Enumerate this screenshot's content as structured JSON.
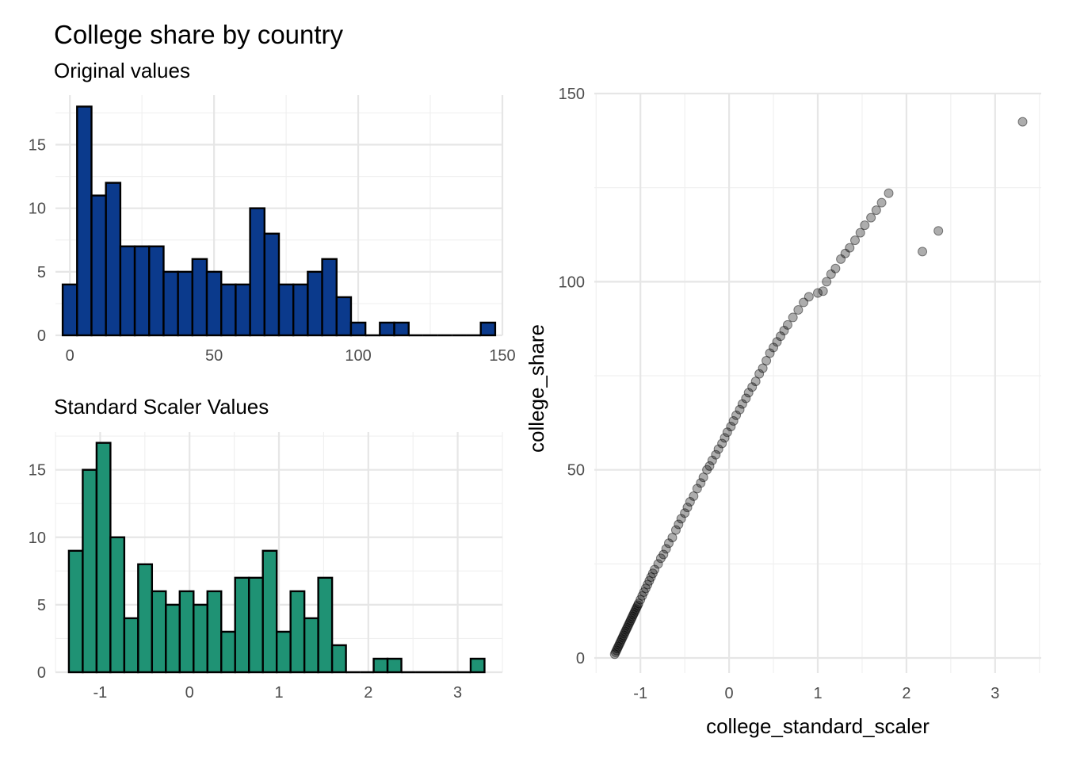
{
  "title": "College share by country",
  "chart_data": [
    {
      "type": "bar",
      "subtitle": "Original values",
      "xlabel": "",
      "ylabel": "",
      "xlim": [
        -5,
        150
      ],
      "ylim": [
        0,
        18.9
      ],
      "x_ticks": [
        0,
        50,
        100,
        150
      ],
      "y_ticks": [
        0,
        5,
        10,
        15
      ],
      "bin_start": -2.5,
      "bin_width": 5,
      "values": [
        4,
        18,
        11,
        12,
        7,
        7,
        7,
        5,
        5,
        6,
        5,
        4,
        4,
        10,
        8,
        4,
        4,
        5,
        6,
        3,
        1,
        0,
        1,
        1,
        0,
        0,
        0,
        0,
        0,
        1
      ],
      "fill": "#0b3a8c",
      "outline": "#000000",
      "grid": true
    },
    {
      "type": "bar",
      "subtitle": "Standard Scaler Values",
      "xlabel": "",
      "ylabel": "",
      "xlim": [
        -1.5,
        3.5
      ],
      "ylim": [
        0,
        17.8
      ],
      "x_ticks": [
        -1,
        0,
        1,
        2,
        3
      ],
      "y_ticks": [
        0,
        5,
        10,
        15
      ],
      "bin_start": -1.35,
      "bin_width": 0.155,
      "values": [
        9,
        15,
        17,
        10,
        4,
        8,
        6,
        5,
        6,
        5,
        6,
        3,
        7,
        7,
        9,
        3,
        6,
        4,
        7,
        2,
        0,
        0,
        1,
        1,
        0,
        0,
        0,
        0,
        0,
        1
      ],
      "fill": "#1f9274",
      "outline": "#000000",
      "grid": true
    },
    {
      "type": "scatter",
      "xlabel": "college_standard_scaler",
      "ylabel": "college_share",
      "xlim": [
        -1.52,
        3.52
      ],
      "ylim": [
        -4,
        150
      ],
      "x_ticks": [
        -1,
        0,
        1,
        2,
        3
      ],
      "y_ticks": [
        0,
        50,
        100,
        150
      ],
      "point_color": "#000000",
      "point_alpha": 0.32,
      "grid": true,
      "points": [
        [
          -1.29,
          1.0
        ],
        [
          -1.28,
          1.5
        ],
        [
          -1.27,
          2.0
        ],
        [
          -1.26,
          2.5
        ],
        [
          -1.25,
          3.0
        ],
        [
          -1.24,
          3.5
        ],
        [
          -1.23,
          4.0
        ],
        [
          -1.22,
          4.5
        ],
        [
          -1.21,
          5.0
        ],
        [
          -1.2,
          5.5
        ],
        [
          -1.19,
          6.0
        ],
        [
          -1.18,
          6.5
        ],
        [
          -1.17,
          7.0
        ],
        [
          -1.16,
          7.5
        ],
        [
          -1.15,
          8.0
        ],
        [
          -1.14,
          8.5
        ],
        [
          -1.13,
          9.0
        ],
        [
          -1.12,
          9.5
        ],
        [
          -1.11,
          10.0
        ],
        [
          -1.1,
          10.5
        ],
        [
          -1.09,
          11.0
        ],
        [
          -1.08,
          11.5
        ],
        [
          -1.07,
          12.0
        ],
        [
          -1.06,
          12.5
        ],
        [
          -1.05,
          13.0
        ],
        [
          -1.04,
          13.5
        ],
        [
          -1.03,
          14.0
        ],
        [
          -1.02,
          14.5
        ],
        [
          -1.0,
          15.5
        ],
        [
          -0.98,
          16.5
        ],
        [
          -0.96,
          17.5
        ],
        [
          -0.94,
          18.5
        ],
        [
          -0.92,
          19.5
        ],
        [
          -0.9,
          20.5
        ],
        [
          -0.88,
          21.5
        ],
        [
          -0.86,
          22.5
        ],
        [
          -0.84,
          23.5
        ],
        [
          -0.8,
          25.0
        ],
        [
          -0.77,
          26.5
        ],
        [
          -0.74,
          27.5
        ],
        [
          -0.71,
          29.0
        ],
        [
          -0.68,
          30.5
        ],
        [
          -0.64,
          32.0
        ],
        [
          -0.6,
          34.0
        ],
        [
          -0.57,
          35.5
        ],
        [
          -0.54,
          37.0
        ],
        [
          -0.5,
          38.5
        ],
        [
          -0.47,
          40.0
        ],
        [
          -0.44,
          41.5
        ],
        [
          -0.4,
          43.0
        ],
        [
          -0.36,
          45.0
        ],
        [
          -0.32,
          46.5
        ],
        [
          -0.29,
          48.0
        ],
        [
          -0.25,
          50.0
        ],
        [
          -0.22,
          51.0
        ],
        [
          -0.19,
          52.5
        ],
        [
          -0.15,
          54.0
        ],
        [
          -0.12,
          55.5
        ],
        [
          -0.08,
          57.0
        ],
        [
          -0.05,
          58.5
        ],
        [
          -0.02,
          60.0
        ],
        [
          0.02,
          61.5
        ],
        [
          0.05,
          63.0
        ],
        [
          0.08,
          64.5
        ],
        [
          0.12,
          66.0
        ],
        [
          0.15,
          67.5
        ],
        [
          0.19,
          69.0
        ],
        [
          0.22,
          70.5
        ],
        [
          0.26,
          72.0
        ],
        [
          0.3,
          73.5
        ],
        [
          0.34,
          75.5
        ],
        [
          0.38,
          77.0
        ],
        [
          0.42,
          79.0
        ],
        [
          0.46,
          81.0
        ],
        [
          0.5,
          82.5
        ],
        [
          0.54,
          84.0
        ],
        [
          0.58,
          85.5
        ],
        [
          0.62,
          87.0
        ],
        [
          0.66,
          88.5
        ],
        [
          0.72,
          90.5
        ],
        [
          0.78,
          92.5
        ],
        [
          0.84,
          94.5
        ],
        [
          0.9,
          96.0
        ],
        [
          1.0,
          97.0
        ],
        [
          1.06,
          97.5
        ],
        [
          1.1,
          100.0
        ],
        [
          1.15,
          102.0
        ],
        [
          1.2,
          103.5
        ],
        [
          1.26,
          106.0
        ],
        [
          1.31,
          107.5
        ],
        [
          1.36,
          109.0
        ],
        [
          1.42,
          111.0
        ],
        [
          1.48,
          113.0
        ],
        [
          1.53,
          115.0
        ],
        [
          1.6,
          117.0
        ],
        [
          1.66,
          119.0
        ],
        [
          1.72,
          121.0
        ],
        [
          1.8,
          123.5
        ],
        [
          2.18,
          108.0
        ],
        [
          2.36,
          113.5
        ],
        [
          3.31,
          142.5
        ]
      ]
    }
  ]
}
